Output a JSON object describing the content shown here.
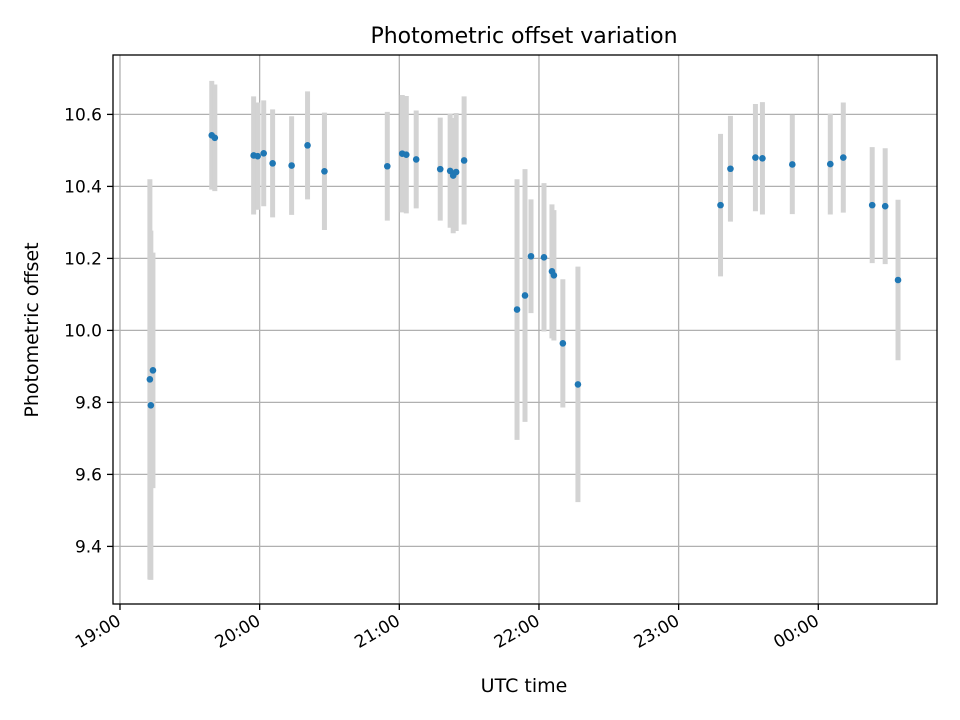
{
  "chart_data": {
    "type": "scatter",
    "title": "Photometric offset variation",
    "xlabel": "UTC time",
    "ylabel": "Photometric offset",
    "grid": true,
    "x_unit": "hours since 19:00 UTC",
    "xlim": [
      -0.05,
      5.85
    ],
    "ylim": [
      9.24,
      10.765
    ],
    "xticks": [
      {
        "value": 0,
        "label": "19:00"
      },
      {
        "value": 1,
        "label": "20:00"
      },
      {
        "value": 2,
        "label": "21:00"
      },
      {
        "value": 3,
        "label": "22:00"
      },
      {
        "value": 4,
        "label": "23:00"
      },
      {
        "value": 5,
        "label": "00:00"
      }
    ],
    "yticks": [
      {
        "value": 9.4,
        "label": "9.4"
      },
      {
        "value": 9.6,
        "label": "9.6"
      },
      {
        "value": 9.8,
        "label": "9.8"
      },
      {
        "value": 10.0,
        "label": "10.0"
      },
      {
        "value": 10.2,
        "label": "10.2"
      },
      {
        "value": 10.4,
        "label": "10.4"
      },
      {
        "value": 10.6,
        "label": "10.6"
      }
    ],
    "series": [
      {
        "name": "Photometric offset",
        "point_color": "#1f77b4",
        "errorbar_color": "#d3d3d3",
        "points": [
          {
            "x": 0.214,
            "y": 9.864,
            "err": 0.556
          },
          {
            "x": 0.221,
            "y": 9.792,
            "err": 0.485
          },
          {
            "x": 0.236,
            "y": 9.889,
            "err": 0.327
          },
          {
            "x": 0.657,
            "y": 10.542,
            "err": 0.151
          },
          {
            "x": 0.679,
            "y": 10.535,
            "err": 0.148
          },
          {
            "x": 0.957,
            "y": 10.486,
            "err": 0.164
          },
          {
            "x": 0.986,
            "y": 10.484,
            "err": 0.149
          },
          {
            "x": 1.029,
            "y": 10.492,
            "err": 0.147
          },
          {
            "x": 1.093,
            "y": 10.464,
            "err": 0.15
          },
          {
            "x": 1.229,
            "y": 10.458,
            "err": 0.137
          },
          {
            "x": 1.343,
            "y": 10.514,
            "err": 0.15
          },
          {
            "x": 1.464,
            "y": 10.442,
            "err": 0.163
          },
          {
            "x": 1.914,
            "y": 10.456,
            "err": 0.151
          },
          {
            "x": 2.021,
            "y": 10.491,
            "err": 0.163
          },
          {
            "x": 2.05,
            "y": 10.488,
            "err": 0.163
          },
          {
            "x": 2.121,
            "y": 10.475,
            "err": 0.136
          },
          {
            "x": 2.293,
            "y": 10.448,
            "err": 0.143
          },
          {
            "x": 2.364,
            "y": 10.443,
            "err": 0.158
          },
          {
            "x": 2.386,
            "y": 10.43,
            "err": 0.16
          },
          {
            "x": 2.407,
            "y": 10.44,
            "err": 0.164
          },
          {
            "x": 2.464,
            "y": 10.472,
            "err": 0.178
          },
          {
            "x": 2.843,
            "y": 10.058,
            "err": 0.362
          },
          {
            "x": 2.9,
            "y": 10.097,
            "err": 0.351
          },
          {
            "x": 2.943,
            "y": 10.206,
            "err": 0.158
          },
          {
            "x": 3.036,
            "y": 10.203,
            "err": 0.206
          },
          {
            "x": 3.093,
            "y": 10.164,
            "err": 0.186
          },
          {
            "x": 3.107,
            "y": 10.153,
            "err": 0.181
          },
          {
            "x": 3.171,
            "y": 9.964,
            "err": 0.178
          },
          {
            "x": 3.279,
            "y": 9.85,
            "err": 0.327
          },
          {
            "x": 4.3,
            "y": 10.348,
            "err": 0.198
          },
          {
            "x": 4.371,
            "y": 10.449,
            "err": 0.147
          },
          {
            "x": 4.55,
            "y": 10.48,
            "err": 0.149
          },
          {
            "x": 4.6,
            "y": 10.478,
            "err": 0.156
          },
          {
            "x": 4.814,
            "y": 10.461,
            "err": 0.138
          },
          {
            "x": 5.086,
            "y": 10.462,
            "err": 0.14
          },
          {
            "x": 5.179,
            "y": 10.48,
            "err": 0.153
          },
          {
            "x": 5.386,
            "y": 10.348,
            "err": 0.161
          },
          {
            "x": 5.479,
            "y": 10.345,
            "err": 0.161
          },
          {
            "x": 5.571,
            "y": 10.14,
            "err": 0.223
          }
        ]
      }
    ]
  }
}
